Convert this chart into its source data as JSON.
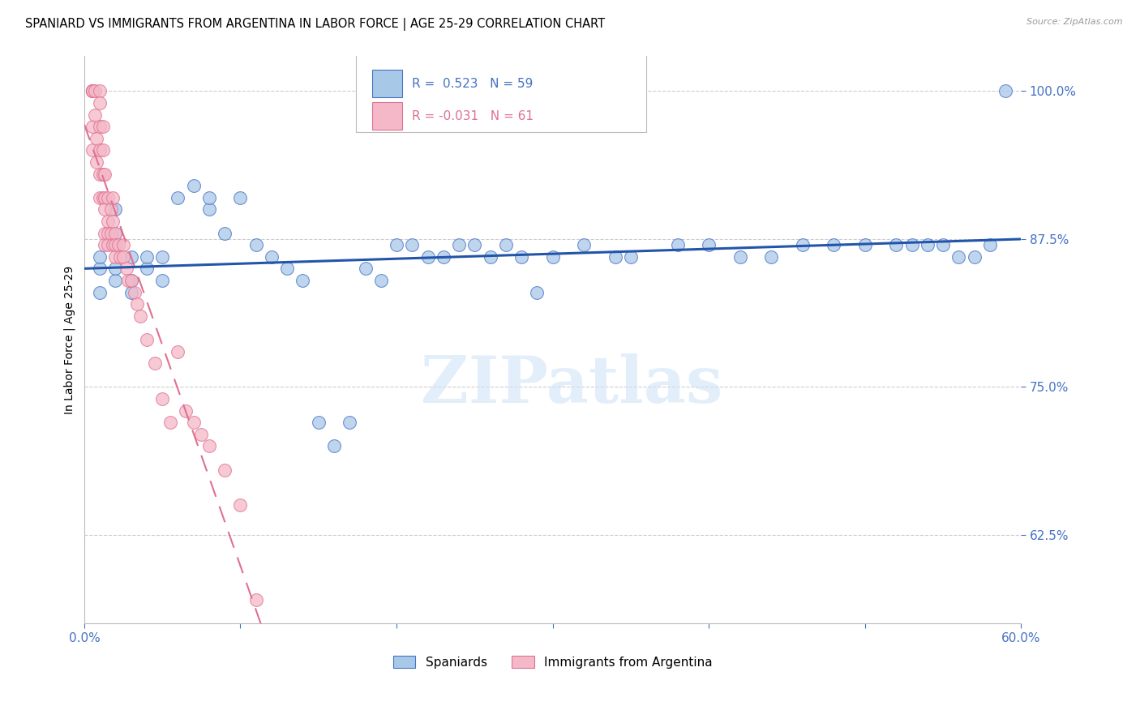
{
  "title": "SPANIARD VS IMMIGRANTS FROM ARGENTINA IN LABOR FORCE | AGE 25-29 CORRELATION CHART",
  "source": "Source: ZipAtlas.com",
  "ylabel": "In Labor Force | Age 25-29",
  "xlim": [
    0.0,
    0.6
  ],
  "ylim": [
    0.55,
    1.03
  ],
  "xticks": [
    0.0,
    0.1,
    0.2,
    0.3,
    0.4,
    0.5,
    0.6
  ],
  "xticklabels": [
    "0.0%",
    "",
    "",
    "",
    "",
    "",
    "60.0%"
  ],
  "yticks": [
    0.625,
    0.75,
    0.875,
    1.0
  ],
  "yticklabels": [
    "62.5%",
    "75.0%",
    "87.5%",
    "100.0%"
  ],
  "legend_blue_label": "Spaniards",
  "legend_pink_label": "Immigrants from Argentina",
  "R_blue": 0.523,
  "N_blue": 59,
  "R_pink": -0.031,
  "N_pink": 61,
  "blue_color": "#a8c8e8",
  "pink_color": "#f4b8c8",
  "blue_edge_color": "#4472c4",
  "pink_edge_color": "#e07090",
  "blue_line_color": "#2255aa",
  "pink_line_color": "#e07090",
  "blue_scatter_x": [
    0.01,
    0.01,
    0.01,
    0.02,
    0.02,
    0.02,
    0.02,
    0.02,
    0.03,
    0.03,
    0.03,
    0.04,
    0.04,
    0.05,
    0.05,
    0.06,
    0.07,
    0.08,
    0.08,
    0.09,
    0.1,
    0.11,
    0.12,
    0.13,
    0.14,
    0.15,
    0.16,
    0.17,
    0.18,
    0.19,
    0.2,
    0.21,
    0.22,
    0.23,
    0.24,
    0.25,
    0.26,
    0.27,
    0.28,
    0.29,
    0.3,
    0.32,
    0.34,
    0.35,
    0.38,
    0.4,
    0.42,
    0.44,
    0.46,
    0.48,
    0.5,
    0.52,
    0.53,
    0.54,
    0.55,
    0.56,
    0.57,
    0.58,
    0.59
  ],
  "blue_scatter_y": [
    0.83,
    0.85,
    0.86,
    0.84,
    0.85,
    0.87,
    0.88,
    0.9,
    0.83,
    0.84,
    0.86,
    0.85,
    0.86,
    0.84,
    0.86,
    0.91,
    0.92,
    0.9,
    0.91,
    0.88,
    0.91,
    0.87,
    0.86,
    0.85,
    0.84,
    0.72,
    0.7,
    0.72,
    0.85,
    0.84,
    0.87,
    0.87,
    0.86,
    0.86,
    0.87,
    0.87,
    0.86,
    0.87,
    0.86,
    0.83,
    0.86,
    0.87,
    0.86,
    0.86,
    0.87,
    0.87,
    0.86,
    0.86,
    0.87,
    0.87,
    0.87,
    0.87,
    0.87,
    0.87,
    0.87,
    0.86,
    0.86,
    0.87,
    1.0
  ],
  "pink_scatter_x": [
    0.005,
    0.005,
    0.005,
    0.005,
    0.005,
    0.005,
    0.005,
    0.005,
    0.007,
    0.007,
    0.008,
    0.008,
    0.01,
    0.01,
    0.01,
    0.01,
    0.01,
    0.01,
    0.012,
    0.012,
    0.012,
    0.012,
    0.013,
    0.013,
    0.013,
    0.013,
    0.013,
    0.015,
    0.015,
    0.015,
    0.015,
    0.017,
    0.017,
    0.018,
    0.018,
    0.018,
    0.02,
    0.02,
    0.02,
    0.022,
    0.023,
    0.025,
    0.025,
    0.027,
    0.028,
    0.03,
    0.032,
    0.034,
    0.036,
    0.04,
    0.045,
    0.05,
    0.055,
    0.06,
    0.065,
    0.07,
    0.075,
    0.08,
    0.09,
    0.1,
    0.11
  ],
  "pink_scatter_y": [
    1.0,
    1.0,
    1.0,
    1.0,
    1.0,
    1.0,
    0.97,
    0.95,
    1.0,
    0.98,
    0.96,
    0.94,
    1.0,
    0.99,
    0.97,
    0.95,
    0.93,
    0.91,
    0.97,
    0.95,
    0.93,
    0.91,
    0.93,
    0.91,
    0.9,
    0.88,
    0.87,
    0.91,
    0.89,
    0.88,
    0.87,
    0.9,
    0.88,
    0.91,
    0.89,
    0.87,
    0.88,
    0.87,
    0.86,
    0.87,
    0.86,
    0.87,
    0.86,
    0.85,
    0.84,
    0.84,
    0.83,
    0.82,
    0.81,
    0.79,
    0.77,
    0.74,
    0.72,
    0.78,
    0.73,
    0.72,
    0.71,
    0.7,
    0.68,
    0.65,
    0.57
  ],
  "watermark_text": "ZIPatlas",
  "background_color": "#ffffff",
  "grid_color": "#cccccc"
}
